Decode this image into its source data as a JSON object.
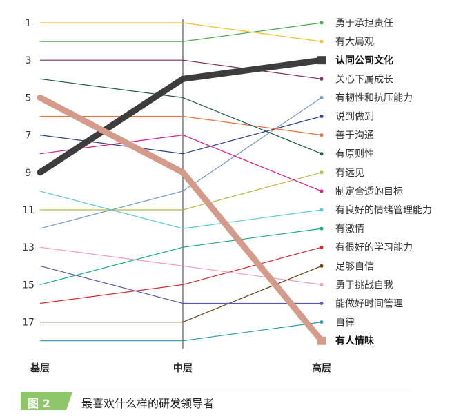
{
  "caption": {
    "tag": "图 2",
    "title": "最喜欢什么样的研发领导者",
    "tag_color": "#8fc66a"
  },
  "chart_data": {
    "type": "line",
    "title": "",
    "xlabel": "",
    "ylabel": "",
    "categories": [
      "基层",
      "中层",
      "高层"
    ],
    "ylim": [
      18,
      1
    ],
    "yticks": [
      1,
      3,
      5,
      7,
      9,
      11,
      13,
      15,
      17
    ],
    "y_inverted": true,
    "grid": false,
    "legend": "labels at right end of each line",
    "series": [
      {
        "name": "有大局观",
        "values": [
          1,
          1,
          2
        ],
        "color": "#f2c12e",
        "bold": false
      },
      {
        "name": "勇于承担责任",
        "values": [
          2,
          2,
          1
        ],
        "color": "#48a84a",
        "bold": false
      },
      {
        "name": "认同公司文化",
        "values": [
          9,
          4,
          3
        ],
        "color": "#3d3d3d",
        "bold": true
      },
      {
        "name": "关心下属成长",
        "values": [
          3,
          3,
          4
        ],
        "color": "#7d2a5e",
        "bold": false
      },
      {
        "name": "有韧性和抗压能力",
        "values": [
          12,
          10,
          5
        ],
        "color": "#6f97c9",
        "bold": false
      },
      {
        "name": "说到做到",
        "values": [
          7,
          8,
          6
        ],
        "color": "#2d3f85",
        "bold": false
      },
      {
        "name": "善于沟通",
        "values": [
          6,
          6,
          7
        ],
        "color": "#e86f3a",
        "bold": false
      },
      {
        "name": "有原则性",
        "values": [
          4,
          5,
          8
        ],
        "color": "#1e5a3e",
        "bold": false
      },
      {
        "name": "有远见",
        "values": [
          11,
          11,
          9
        ],
        "color": "#b5b84a",
        "bold": false
      },
      {
        "name": "制定合适的目标",
        "values": [
          8,
          7,
          10
        ],
        "color": "#d61c8c",
        "bold": false
      },
      {
        "name": "有良好的情绪管理能力",
        "values": [
          10,
          12,
          11
        ],
        "color": "#5cc6d6",
        "bold": false
      },
      {
        "name": "有激情",
        "values": [
          15,
          13,
          12
        ],
        "color": "#1aa888",
        "bold": false
      },
      {
        "name": "有很好的学习能力",
        "values": [
          16,
          15,
          13
        ],
        "color": "#d42c2c",
        "bold": false
      },
      {
        "name": "足够自信",
        "values": [
          17,
          17,
          14
        ],
        "color": "#6b3b10",
        "bold": false
      },
      {
        "name": "勇于挑战自我",
        "values": [
          13,
          14,
          15
        ],
        "color": "#f29ab8",
        "bold": false
      },
      {
        "name": "能做好时间管理",
        "values": [
          14,
          16,
          16
        ],
        "color": "#5a5aa8",
        "bold": false
      },
      {
        "name": "自律",
        "values": [
          18,
          18,
          17
        ],
        "color": "#2a9ab0",
        "bold": false
      },
      {
        "name": "有人情味",
        "values": [
          5,
          9,
          18
        ],
        "color": "#d49a8a",
        "bold": true
      }
    ]
  }
}
